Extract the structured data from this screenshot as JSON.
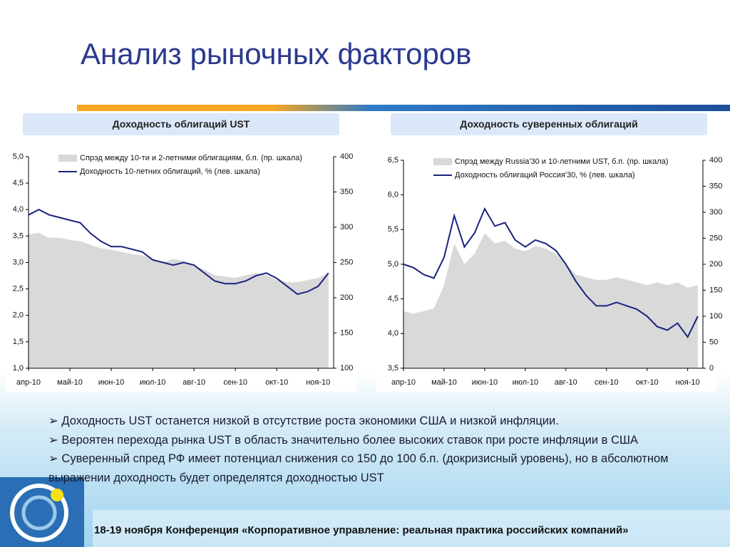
{
  "title": "Анализ рыночных факторов",
  "bullets": [
    "Доходность UST останется низкой в отсутствие роста экономики США и низкой инфляции.",
    "Вероятен перехода рынка UST в область значительно более высоких ставок при росте инфляции в США",
    "Суверенный спред РФ имеет потенциал снижения со 150 до 100 б.п. (докризисный уровень), но в абсолютном выражении доходность будет определятся доходностью UST"
  ],
  "footer": "18-19 ноября Конференция «Корпоративное управление: реальная практика российских компаний»",
  "chart_data": [
    {
      "type": "line",
      "title": "Доходность облигаций UST",
      "categories": [
        "апр-10",
        null,
        null,
        null,
        "май-10",
        null,
        null,
        null,
        "июн-10",
        null,
        null,
        null,
        "июл-10",
        null,
        null,
        null,
        "авг-10",
        null,
        null,
        null,
        "сен-10",
        null,
        null,
        null,
        "окт-10",
        null,
        null,
        null,
        "ноя-10",
        null
      ],
      "series": [
        {
          "name": "Спрэд между 10-ти и 2-летними облигациям, б.п. (пр. шкала)",
          "type": "area",
          "axis": "y2",
          "color": "#d9d9d9",
          "values": [
            290,
            292,
            285,
            285,
            282,
            280,
            275,
            270,
            268,
            265,
            262,
            260,
            255,
            250,
            255,
            252,
            245,
            240,
            232,
            230,
            228,
            232,
            235,
            232,
            225,
            222,
            222,
            225,
            228,
            235
          ]
        },
        {
          "name": "Доходность 10-летних облигаций, % (лев. шкала)",
          "type": "line",
          "color": "#1a237e",
          "values": [
            3.9,
            4.0,
            3.9,
            3.85,
            3.8,
            3.75,
            3.55,
            3.4,
            3.3,
            3.3,
            3.25,
            3.2,
            3.05,
            3.0,
            2.95,
            3.0,
            2.95,
            2.8,
            2.65,
            2.6,
            2.6,
            2.65,
            2.75,
            2.8,
            2.7,
            2.55,
            2.4,
            2.45,
            2.55,
            2.8
          ]
        }
      ],
      "ylim": [
        1,
        5
      ],
      "yticks": [
        {
          "value": 1,
          "label": "1,0"
        },
        {
          "value": 1.5,
          "label": "1,5"
        },
        {
          "value": 2,
          "label": "2,0"
        },
        {
          "value": 2.5,
          "label": "2,5"
        },
        {
          "value": 3,
          "label": "3,0"
        },
        {
          "value": 3.5,
          "label": "3,5"
        },
        {
          "value": 4,
          "label": "4,0"
        },
        {
          "value": 4.5,
          "label": "4,5"
        },
        {
          "value": 5,
          "label": "5,0"
        }
      ],
      "y2lim": [
        100,
        400
      ],
      "y2ticks": [
        100,
        150,
        200,
        250,
        300,
        350,
        400
      ]
    },
    {
      "type": "line",
      "title": "Доходность суверенных облигаций",
      "categories": [
        "апр-10",
        null,
        null,
        null,
        "май-10",
        null,
        null,
        null,
        "июн-10",
        null,
        null,
        null,
        "июл-10",
        null,
        null,
        null,
        "авг-10",
        null,
        null,
        null,
        "сен-10",
        null,
        null,
        null,
        "окт-10",
        null,
        null,
        null,
        "ноя-10",
        null
      ],
      "series": [
        {
          "name": "Спрэд между Russia'30 и 10-летними UST, б.п. (пр. шкала)",
          "type": "area",
          "axis": "y2",
          "color": "#d9d9d9",
          "values": [
            110,
            105,
            110,
            115,
            160,
            240,
            200,
            220,
            260,
            240,
            245,
            230,
            225,
            235,
            230,
            220,
            200,
            180,
            175,
            170,
            170,
            175,
            170,
            165,
            160,
            165,
            160,
            165,
            155,
            160
          ]
        },
        {
          "name": "Доходность облигаций Россия'30, % (лев. шкала)",
          "type": "line",
          "color": "#1a237e",
          "values": [
            5.0,
            4.95,
            4.85,
            4.8,
            5.1,
            5.7,
            5.25,
            5.45,
            5.8,
            5.55,
            5.6,
            5.35,
            5.25,
            5.35,
            5.3,
            5.2,
            5.0,
            4.75,
            4.55,
            4.4,
            4.4,
            4.45,
            4.4,
            4.35,
            4.25,
            4.1,
            4.05,
            4.15,
            3.95,
            4.25
          ]
        }
      ],
      "ylim": [
        3.5,
        6.5
      ],
      "yticks": [
        {
          "value": 3.5,
          "label": "3,5"
        },
        {
          "value": 4,
          "label": "4,0"
        },
        {
          "value": 4.5,
          "label": "4,5"
        },
        {
          "value": 5,
          "label": "5,0"
        },
        {
          "value": 5.5,
          "label": "5,5"
        },
        {
          "value": 6,
          "label": "6,0"
        },
        {
          "value": 6.5,
          "label": "6,5"
        }
      ],
      "y2lim": [
        0,
        400
      ],
      "y2ticks": [
        0,
        50,
        100,
        150,
        200,
        250,
        300,
        350,
        400
      ]
    }
  ]
}
